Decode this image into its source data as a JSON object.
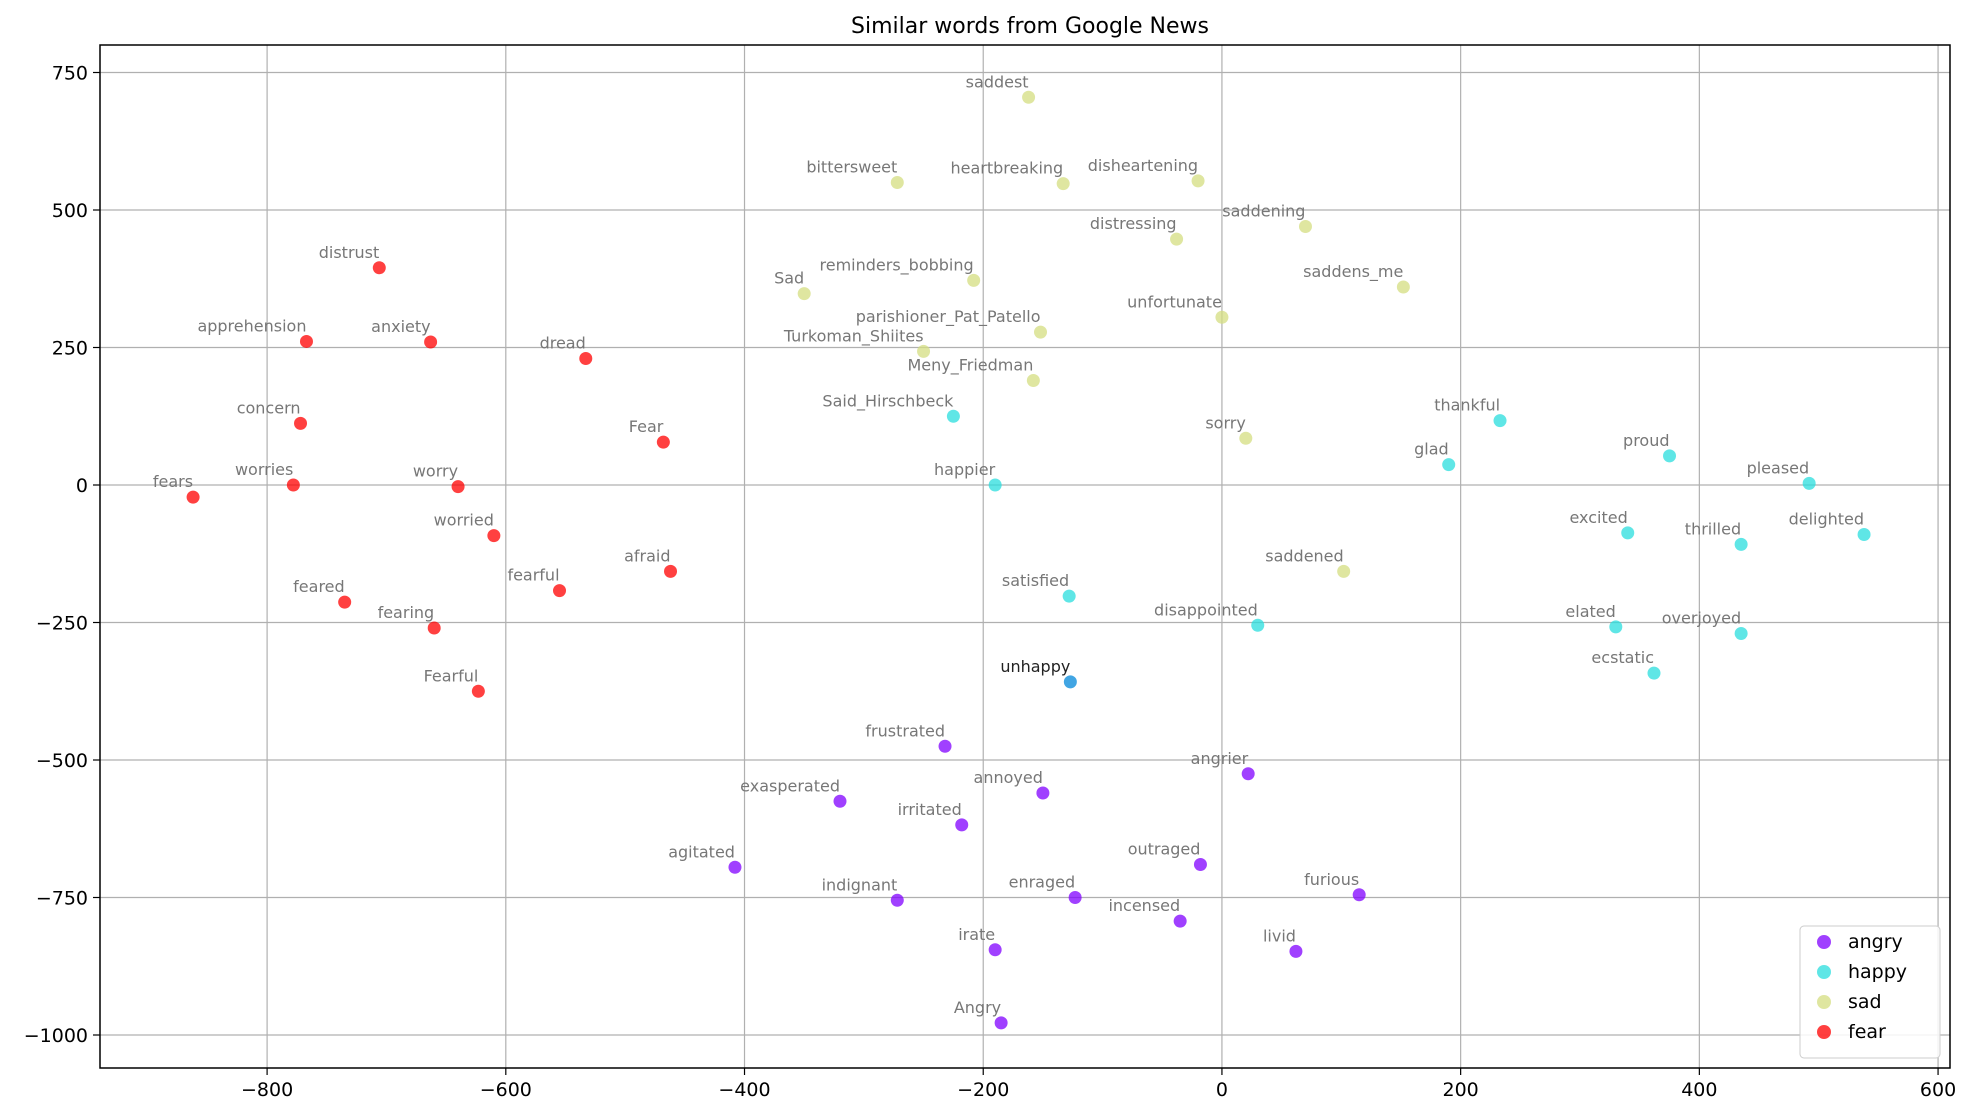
{
  "chart_data": {
    "type": "scatter",
    "title": "Similar words from Google News",
    "xlabel": "",
    "ylabel": "",
    "xlim": [
      -940,
      610
    ],
    "ylim": [
      -1060,
      800
    ],
    "xticks": [
      -800,
      -600,
      -400,
      -200,
      0,
      200,
      400,
      600
    ],
    "yticks": [
      750,
      500,
      250,
      0,
      -250,
      -500,
      -750,
      -1000
    ],
    "xtick_labels": [
      "−800",
      "−600",
      "−400",
      "−200",
      "0",
      "200",
      "400",
      "600"
    ],
    "ytick_labels": [
      "750",
      "500",
      "250",
      "0",
      "−250",
      "−500",
      "−750",
      "−1000"
    ],
    "grid": true,
    "legend_position": "bottom-right",
    "series": [
      {
        "name": "angry",
        "color": "#8000ff",
        "points": [
          {
            "label": "frustrated",
            "x": -232,
            "y": -475
          },
          {
            "label": "exasperated",
            "x": -320,
            "y": -575
          },
          {
            "label": "irritated",
            "x": -218,
            "y": -618
          },
          {
            "label": "annoyed",
            "x": -150,
            "y": -560
          },
          {
            "label": "angrier",
            "x": 22,
            "y": -525
          },
          {
            "label": "agitated",
            "x": -408,
            "y": -695
          },
          {
            "label": "outraged",
            "x": -18,
            "y": -690
          },
          {
            "label": "indignant",
            "x": -272,
            "y": -755
          },
          {
            "label": "enraged",
            "x": -123,
            "y": -750
          },
          {
            "label": "furious",
            "x": 115,
            "y": -745
          },
          {
            "label": "incensed",
            "x": -35,
            "y": -793
          },
          {
            "label": "irate",
            "x": -190,
            "y": -845
          },
          {
            "label": "livid",
            "x": 62,
            "y": -848
          },
          {
            "label": "Angry",
            "x": -185,
            "y": -978
          }
        ]
      },
      {
        "name": "happy",
        "color": "#2adddd",
        "points": [
          {
            "label": "Said_Hirschbeck",
            "x": -225,
            "y": 125
          },
          {
            "label": "happier",
            "x": -190,
            "y": 0
          },
          {
            "label": "satisfied",
            "x": -128,
            "y": -202
          },
          {
            "label": "disappointed",
            "x": 30,
            "y": -255
          },
          {
            "label": "thankful",
            "x": 233,
            "y": 117
          },
          {
            "label": "glad",
            "x": 190,
            "y": 37
          },
          {
            "label": "proud",
            "x": 375,
            "y": 53
          },
          {
            "label": "pleased",
            "x": 492,
            "y": 3
          },
          {
            "label": "excited",
            "x": 340,
            "y": -87
          },
          {
            "label": "thrilled",
            "x": 435,
            "y": -108
          },
          {
            "label": "delighted",
            "x": 538,
            "y": -90
          },
          {
            "label": "elated",
            "x": 330,
            "y": -258
          },
          {
            "label": "overjoyed",
            "x": 435,
            "y": -270
          },
          {
            "label": "ecstatic",
            "x": 362,
            "y": -342
          }
        ]
      },
      {
        "name": "sad",
        "color": "#d4dd80",
        "points": [
          {
            "label": "saddest",
            "x": -162,
            "y": 705
          },
          {
            "label": "bittersweet",
            "x": -272,
            "y": 550
          },
          {
            "label": "heartbreaking",
            "x": -133,
            "y": 548
          },
          {
            "label": "disheartening",
            "x": -20,
            "y": 553
          },
          {
            "label": "saddening",
            "x": 70,
            "y": 470
          },
          {
            "label": "distressing",
            "x": -38,
            "y": 447
          },
          {
            "label": "reminders_bobbing",
            "x": -208,
            "y": 372
          },
          {
            "label": "Sad",
            "x": -350,
            "y": 348
          },
          {
            "label": "saddens_me",
            "x": 152,
            "y": 360
          },
          {
            "label": "unfortunate",
            "x": 0,
            "y": 305
          },
          {
            "label": "parishioner_Pat_Patello",
            "x": -152,
            "y": 278
          },
          {
            "label": "Turkoman_Shiites",
            "x": -250,
            "y": 243
          },
          {
            "label": "Meny_Friedman",
            "x": -158,
            "y": 190
          },
          {
            "label": "sorry",
            "x": 20,
            "y": 85
          },
          {
            "label": "saddened",
            "x": 102,
            "y": -157
          }
        ]
      },
      {
        "name": "fear",
        "color": "#ff0000",
        "points": [
          {
            "label": "distrust",
            "x": -706,
            "y": 395
          },
          {
            "label": "apprehension",
            "x": -767,
            "y": 261
          },
          {
            "label": "anxiety",
            "x": -663,
            "y": 260
          },
          {
            "label": "dread",
            "x": -533,
            "y": 230
          },
          {
            "label": "concern",
            "x": -772,
            "y": 112
          },
          {
            "label": "Fear",
            "x": -468,
            "y": 78
          },
          {
            "label": "fears",
            "x": -862,
            "y": -22
          },
          {
            "label": "worries",
            "x": -778,
            "y": 0
          },
          {
            "label": "worry",
            "x": -640,
            "y": -3
          },
          {
            "label": "worried",
            "x": -610,
            "y": -92
          },
          {
            "label": "afraid",
            "x": -462,
            "y": -157
          },
          {
            "label": "feared",
            "x": -735,
            "y": -213
          },
          {
            "label": "fearful",
            "x": -555,
            "y": -192
          },
          {
            "label": "fearing",
            "x": -660,
            "y": -260
          },
          {
            "label": "Fearful",
            "x": -623,
            "y": -375
          }
        ]
      }
    ],
    "focus_point": {
      "label": "unhappy",
      "x": -127,
      "y": -358,
      "color": "#2c9be0"
    }
  }
}
